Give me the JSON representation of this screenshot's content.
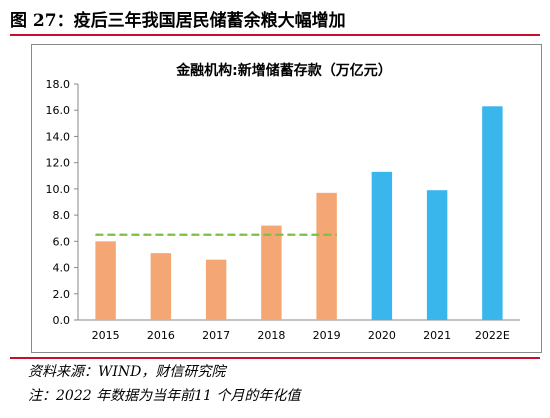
{
  "figure_title": "图 27：疫后三年我国居民储蓄余粮大幅增加",
  "source": "资料来源：WIND，财信研究院",
  "footnote": "注：2022 年数据为当年前11 个月的年化值",
  "colors": {
    "orange": "#f4a774",
    "blue": "#39b7ec",
    "trend": "#7ac143",
    "accent": "#c8102e"
  },
  "chart_data": {
    "type": "bar",
    "title": "金融机构:新增储蓄存款（万亿元）",
    "xlabel": "",
    "ylabel": "",
    "categories": [
      "2015",
      "2016",
      "2017",
      "2018",
      "2019",
      "2020",
      "2021",
      "2022E"
    ],
    "values": [
      6.0,
      5.1,
      4.6,
      7.2,
      9.7,
      11.3,
      9.9,
      16.3
    ],
    "bar_colors": [
      "orange",
      "orange",
      "orange",
      "orange",
      "orange",
      "blue",
      "blue",
      "blue"
    ],
    "ylim": [
      0,
      18
    ],
    "yticks": [
      "0.0",
      "2.0",
      "4.0",
      "6.0",
      "8.0",
      "10.0",
      "12.0",
      "14.0",
      "16.0",
      "18.0"
    ],
    "trend_line": {
      "value": 6.5,
      "from_category": "2015",
      "to_category": "2019",
      "style": "dashed"
    },
    "grid": false,
    "legend": "none"
  }
}
